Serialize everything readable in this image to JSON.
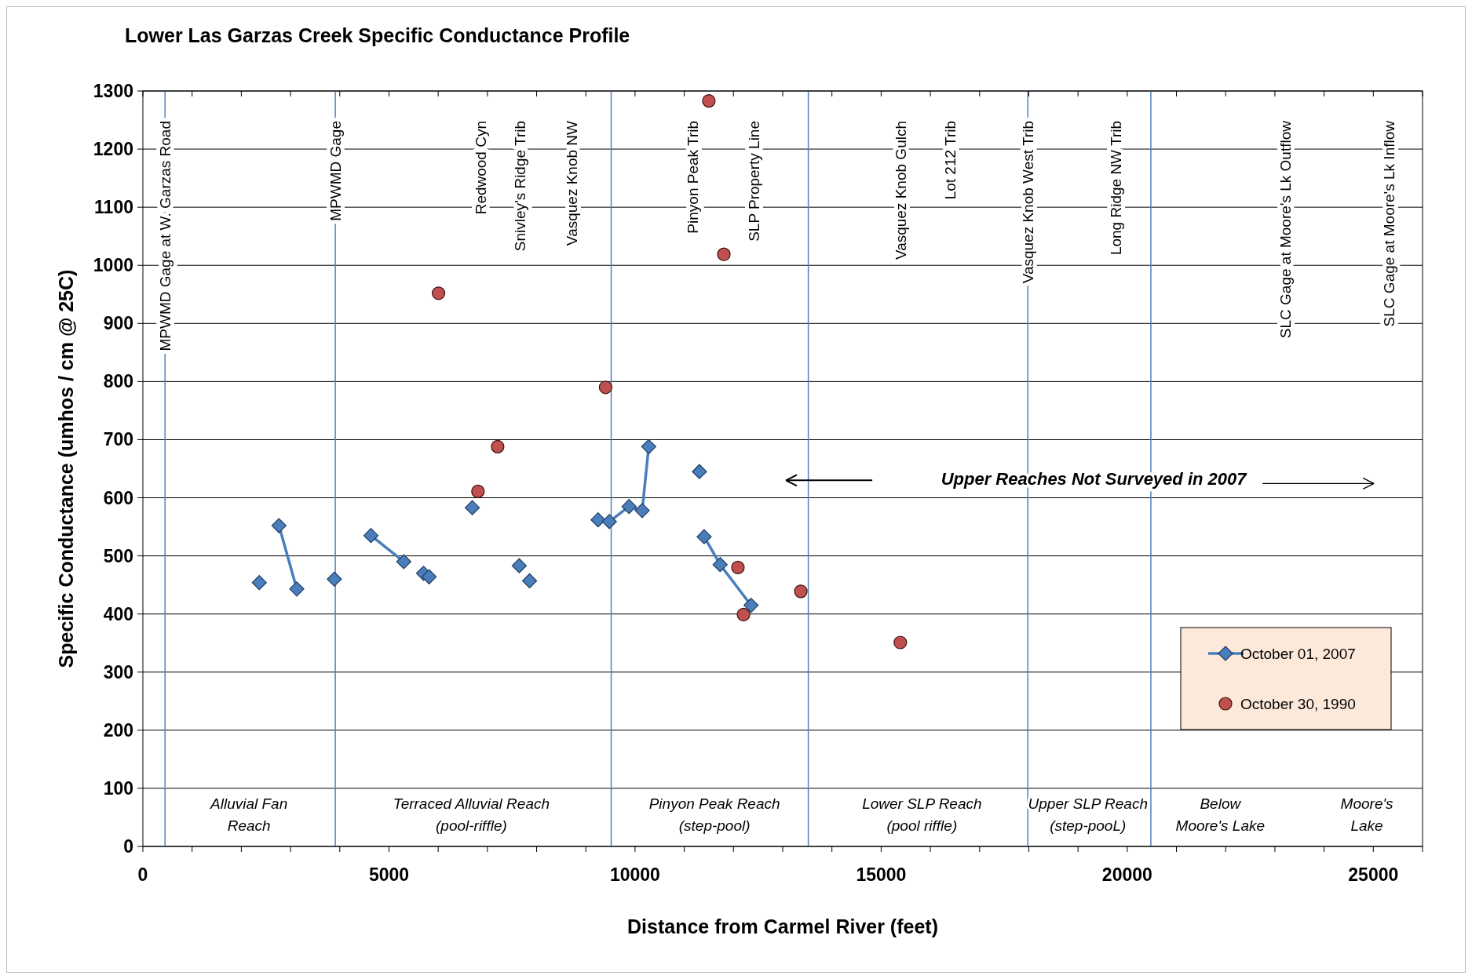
{
  "chart_data": {
    "type": "scatter",
    "title": "Lower Las Garzas Creek Specific Conductance  Profile",
    "xlabel": "Distance from Carmel River (feet)",
    "ylabel": "Specific Conductance  (umhos / cm @ 25C)",
    "xlim": [
      0,
      26000
    ],
    "ylim": [
      0,
      1300
    ],
    "xticks": [
      0,
      {
        "value": 1000,
        "label": null
      },
      {
        "value": 2000,
        "label": null
      },
      {
        "value": 3000,
        "label": null
      },
      {
        "value": 4000,
        "label": null
      },
      5000,
      {
        "value": 6000,
        "label": null
      },
      {
        "value": 7000,
        "label": null
      },
      {
        "value": 8000,
        "label": null
      },
      {
        "value": 9000,
        "label": null
      },
      10000,
      {
        "value": 11000,
        "label": null
      },
      {
        "value": 12000,
        "label": null
      },
      {
        "value": 13000,
        "label": null
      },
      {
        "value": 14000,
        "label": null
      },
      15000,
      {
        "value": 16000,
        "label": null
      },
      {
        "value": 17000,
        "label": null
      },
      {
        "value": 18000,
        "label": null
      },
      {
        "value": 19000,
        "label": null
      },
      20000,
      {
        "value": 21000,
        "label": null
      },
      {
        "value": 22000,
        "label": null
      },
      {
        "value": 23000,
        "label": null
      },
      {
        "value": 24000,
        "label": null
      },
      25000,
      {
        "value": 26000,
        "label": null
      }
    ],
    "yticks": [
      0,
      100,
      200,
      300,
      400,
      500,
      600,
      700,
      800,
      900,
      1000,
      1100,
      1200,
      1300
    ],
    "grid": "y",
    "legend": "bottom right",
    "series": [
      {
        "name": "October 01, 2007",
        "type": "line",
        "marker": "diamond",
        "color": "#4a7ebb",
        "x": [
          2365,
          2560,
          2765,
          3127,
          3500,
          3890,
          4260,
          4634,
          5301,
          5500,
          5702,
          5760,
          5816,
          6250,
          6693,
          7170,
          7647,
          7750,
          7857,
          8550,
          9249,
          9478,
          9878,
          10145,
          10278,
          10790,
          11308,
          11350,
          11404,
          11728,
          12357
        ],
        "values": [
          454,
          null,
          552,
          443,
          null,
          460,
          null,
          535,
          490,
          null,
          470,
          null,
          464,
          null,
          583,
          null,
          483,
          null,
          457,
          null,
          562,
          559,
          585,
          578,
          688,
          null,
          645,
          null,
          533,
          485,
          415
        ]
      },
      {
        "name": "October 30, 1990",
        "type": "scatter",
        "marker": "circle",
        "color": "#c0504d",
        "x": [
          6007,
          6808,
          7208,
          9401,
          11499,
          11804,
          12090,
          12204,
          13368,
          15389
        ],
        "values": [
          952,
          611,
          688,
          790,
          1283,
          1019,
          480,
          399,
          439,
          351
        ]
      }
    ],
    "ref_lines": [
      {
        "axis": "x",
        "value": 450,
        "color": "#4f81bd",
        "label": "MPWMD Gage at W. Garzas Road"
      },
      {
        "axis": "x",
        "value": 3910,
        "color": "#4f81bd",
        "label": "MPWMD Gage"
      },
      {
        "axis": "x",
        "value": 9515,
        "color": "#4f81bd"
      },
      {
        "axis": "x",
        "value": 13520,
        "color": "#4f81bd"
      },
      {
        "axis": "x",
        "value": 17980,
        "color": "#4f81bd",
        "label": "Vasquez Knob West Trib"
      },
      {
        "axis": "x",
        "value": 20480,
        "color": "#4f81bd"
      }
    ],
    "annotations": [
      "Redwood Cyn",
      "Snivley's Ridge Trib",
      "Vasquez Knob NW",
      "Pinyon Peak Trib",
      "SLP Property Line",
      "Vasquez Knob Gulch",
      "Lot 212 Trib",
      "Long Ridge NW Trib",
      "SLC Gage at Moore's Lk Outflow",
      "SLC Gage at Moore's Lk Inflow",
      "Upper Reaches Not Surveyed in 2007",
      "Alluvial Fan\nReach",
      "Terraced Alluvial Reach\n(pool-riffle)",
      "Pinyon Peak Reach\n(step-pool)",
      "Lower SLP Reach\n(pool riffle)",
      "Upper SLP Reach\n(step-pooL)",
      "Below\nMoore's Lake",
      "Moore's\nLake"
    ]
  }
}
